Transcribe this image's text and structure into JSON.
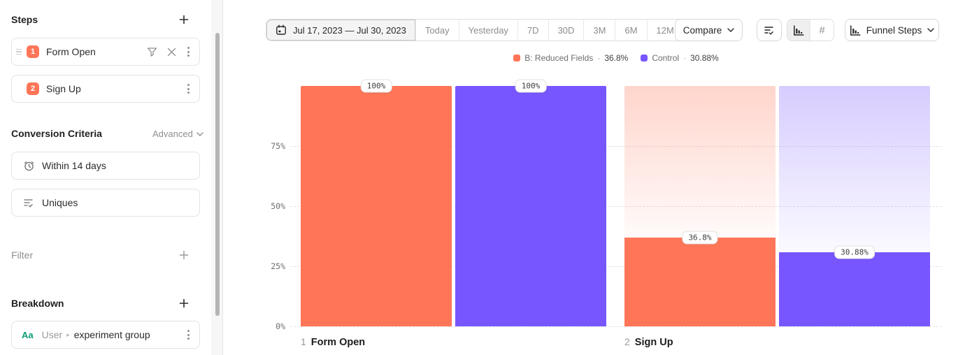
{
  "sidebar": {
    "steps_title": "Steps",
    "step_items": [
      {
        "index": "1",
        "label": "Form Open"
      },
      {
        "index": "2",
        "label": "Sign Up"
      }
    ],
    "conversion_title": "Conversion Criteria",
    "advanced_label": "Advanced",
    "criteria_items": [
      {
        "label": "Within 14 days"
      },
      {
        "label": "Uniques"
      }
    ],
    "filter_title": "Filter",
    "breakdown_title": "Breakdown",
    "breakdown_item": {
      "type_badge": "Aa",
      "scope": "User",
      "chevron": "▸",
      "label": "experiment group"
    }
  },
  "toolbar": {
    "date_range": "Jul 17, 2023 — Jul 30, 2023",
    "presets": [
      "Today",
      "Yesterday",
      "7D",
      "30D",
      "3M",
      "6M",
      "12M"
    ],
    "compare_label": "Compare",
    "hash_label": "#",
    "view_label": "Funnel Steps"
  },
  "legend": {
    "separator": "·",
    "items": [
      {
        "label": "B: Reduced Fields",
        "value": "36.8%",
        "color": "#FF7557"
      },
      {
        "label": "Control",
        "value": "30.88%",
        "color": "#7856FF"
      }
    ]
  },
  "chart_data": {
    "type": "bar",
    "subtype": "funnel-steps",
    "categories": [
      "Form Open",
      "Sign Up"
    ],
    "step_numbers": [
      "1",
      "2"
    ],
    "series": [
      {
        "name": "B: Reduced Fields",
        "color": "#FF7557",
        "values": [
          100,
          36.8
        ],
        "labels": [
          "100%",
          "36.8%"
        ]
      },
      {
        "name": "Control",
        "color": "#7856FF",
        "values": [
          100,
          30.88
        ],
        "labels": [
          "100%",
          "30.88%"
        ]
      }
    ],
    "ylim": [
      0,
      100
    ],
    "yticks": [
      0,
      25,
      50,
      75
    ],
    "ytick_labels": [
      "0%",
      "25%",
      "50%",
      "75%"
    ],
    "grid": "horizontal-dashed",
    "legend_position": "top-center"
  },
  "colors": {
    "accent_orange": "#FF7557",
    "accent_purple": "#7856FF",
    "badge_orange": "#FF7557",
    "type_green": "#0a9d74"
  }
}
